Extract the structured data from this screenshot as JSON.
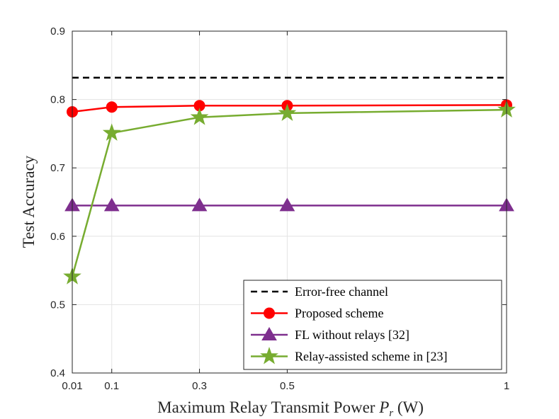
{
  "chart_data": {
    "type": "line",
    "title": "",
    "xlabel_main": "Maximum Relay Transmit Power ",
    "xlabel_symbol": "P",
    "xlabel_sub": "r",
    "xlabel_unit": " (W)",
    "ylabel": "Test Accuracy",
    "xlim": [
      0.01,
      1
    ],
    "ylim": [
      0.4,
      0.9
    ],
    "x_ticks": [
      0.01,
      0.1,
      0.3,
      0.5,
      1
    ],
    "x_tick_labels": [
      "0.01",
      "0.1",
      "0.3",
      "0.5",
      "1"
    ],
    "y_ticks": [
      0.4,
      0.5,
      0.6,
      0.7,
      0.8,
      0.9
    ],
    "y_tick_labels": [
      "0.4",
      "0.5",
      "0.6",
      "0.7",
      "0.8",
      "0.9"
    ],
    "grid": true,
    "legend_position": "bottom-right",
    "series": [
      {
        "name": "Error-free channel",
        "x": [
          0.01,
          1
        ],
        "values": [
          0.832,
          0.832
        ],
        "color": "#000000",
        "style": "dashed",
        "marker": "none"
      },
      {
        "name": "Proposed scheme",
        "x": [
          0.01,
          0.1,
          0.3,
          0.5,
          1
        ],
        "values": [
          0.782,
          0.789,
          0.791,
          0.791,
          0.792
        ],
        "color": "#ff0000",
        "style": "solid",
        "marker": "circle"
      },
      {
        "name": "FL without relays [32]",
        "x": [
          0.01,
          0.1,
          0.3,
          0.5,
          1
        ],
        "values": [
          0.645,
          0.645,
          0.645,
          0.645,
          0.645
        ],
        "color": "#7e2f8e",
        "style": "solid",
        "marker": "triangle"
      },
      {
        "name": "Relay-assisted scheme in [23]",
        "x": [
          0.01,
          0.1,
          0.3,
          0.5,
          1
        ],
        "values": [
          0.541,
          0.751,
          0.774,
          0.78,
          0.785
        ],
        "color": "#77ac30",
        "style": "solid",
        "marker": "star"
      }
    ]
  }
}
